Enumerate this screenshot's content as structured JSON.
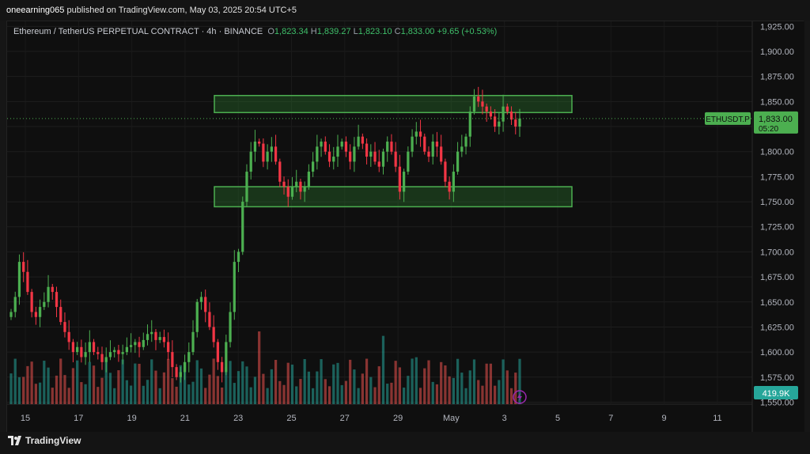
{
  "header": {
    "user": "oneearning065",
    "published_text": " published on TradingView.com, May 03, 2025 20:54 UTC+5"
  },
  "legend": {
    "symbol": "Ethereum / TetherUS PERPETUAL CONTRACT · 4h · BINANCE",
    "o_label": "O",
    "o_value": "1,823.34",
    "h_label": "H",
    "h_value": "1,839.27",
    "l_label": "L",
    "l_value": "1,823.10",
    "c_label": "C",
    "c_value": "1,833.00",
    "change": "+9.65 (+0.53%)"
  },
  "price_badge": {
    "ticker": "ETHUSDT.P",
    "price": "1,833.00",
    "countdown": "05:20"
  },
  "volume_badge": {
    "value": "419.9K"
  },
  "footer": {
    "brand": "TradingView"
  },
  "colors": {
    "up": "#26a69a",
    "down": "#ef5350",
    "candle_up": "#4caf50",
    "candle_down": "#f23645",
    "zone_fill": "#2e7d32",
    "zone_stroke": "#4caf50",
    "badge": "#4caf50",
    "alert": "#9c27b0"
  },
  "chart_data": {
    "type": "candlestick",
    "symbol": "ETHUSDT.P",
    "timeframe": "4h",
    "yaxis_ticks": [
      "1,925.00",
      "1,900.00",
      "1,875.00",
      "1,850.00",
      "1,825.00",
      "1,800.00",
      "1,775.00",
      "1,750.00",
      "1,725.00",
      "1,700.00",
      "1,675.00",
      "1,650.00",
      "1,625.00",
      "1,600.00",
      "1,575.00",
      "1,550.00"
    ],
    "ylim": [
      1548,
      1930
    ],
    "xaxis_ticks": [
      "15",
      "17",
      "19",
      "21",
      "23",
      "25",
      "27",
      "29",
      "May",
      "3",
      "5",
      "7",
      "9",
      "11"
    ],
    "last_price": 1833.0,
    "zones": [
      {
        "name": "resistance",
        "from": 1839,
        "to": 1856
      },
      {
        "name": "support",
        "from": 1745,
        "to": 1765
      }
    ],
    "candles_close": [
      1640,
      1655,
      1690,
      1680,
      1660,
      1640,
      1635,
      1645,
      1650,
      1665,
      1660,
      1645,
      1630,
      1620,
      1610,
      1600,
      1605,
      1595,
      1600,
      1610,
      1600,
      1598,
      1590,
      1595,
      1600,
      1602,
      1598,
      1600,
      1605,
      1607,
      1610,
      1605,
      1612,
      1618,
      1620,
      1612,
      1615,
      1610,
      1600,
      1585,
      1575,
      1580,
      1590,
      1600,
      1620,
      1650,
      1655,
      1640,
      1625,
      1610,
      1590,
      1580,
      1610,
      1640,
      1690,
      1700,
      1750,
      1780,
      1800,
      1810,
      1808,
      1790,
      1800,
      1805,
      1790,
      1770,
      1765,
      1755,
      1765,
      1770,
      1760,
      1765,
      1780,
      1790,
      1805,
      1810,
      1800,
      1790,
      1795,
      1805,
      1810,
      1800,
      1790,
      1805,
      1815,
      1808,
      1795,
      1800,
      1790,
      1785,
      1800,
      1810,
      1800,
      1785,
      1760,
      1780,
      1800,
      1815,
      1820,
      1815,
      1800,
      1795,
      1810,
      1805,
      1790,
      1770,
      1760,
      1780,
      1800,
      1805,
      1815,
      1840,
      1855,
      1850,
      1845,
      1840,
      1835,
      1825,
      1830,
      1845,
      1840,
      1832,
      1825,
      1833
    ]
  }
}
